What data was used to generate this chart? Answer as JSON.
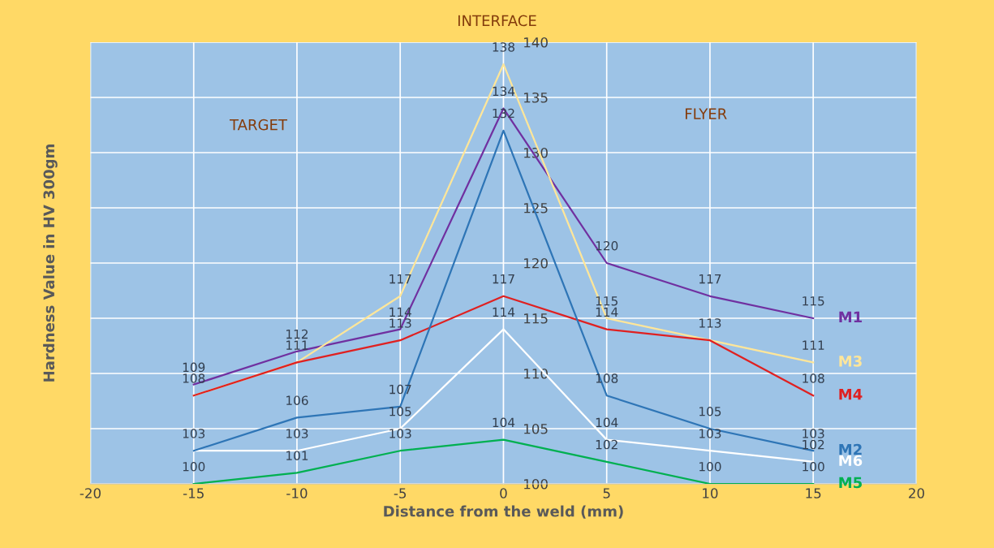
{
  "chart_data": {
    "type": "line",
    "xlabel": "Distance from the weld (mm)",
    "ylabel": "Hardness Value in HV 300gm",
    "x": [
      -15,
      -10,
      -5,
      0,
      5,
      10,
      15
    ],
    "series": [
      {
        "name": "M1",
        "color": "#7030a0",
        "values": [
          109,
          112,
          114,
          134,
          120,
          117,
          115
        ],
        "value_labels": [
          "109",
          "112",
          "114",
          "134",
          "120",
          "117",
          "115"
        ]
      },
      {
        "name": "M3",
        "color": "#ffe699",
        "values": [
          108,
          111,
          117,
          138,
          115,
          113,
          111
        ],
        "value_labels": [
          "108",
          "111",
          "117",
          "138",
          "115",
          "113",
          "111"
        ]
      },
      {
        "name": "M4",
        "color": "#e02020",
        "values": [
          108,
          111,
          113,
          117,
          114,
          113,
          108
        ],
        "value_labels": [
          null,
          null,
          "113",
          "117",
          "114",
          null,
          "108"
        ]
      },
      {
        "name": "M6",
        "color": "#ffffff",
        "values": [
          103,
          103,
          105,
          114,
          104,
          103,
          102
        ],
        "value_labels": [
          "103",
          "103",
          "105",
          "114",
          "104",
          "103",
          "102"
        ]
      },
      {
        "name": "M2",
        "color": "#2e75b6",
        "values": [
          103,
          106,
          107,
          132,
          108,
          105,
          103
        ],
        "value_labels": [
          null,
          "106",
          "107",
          "132",
          "108",
          "105",
          "103"
        ]
      },
      {
        "name": "M5",
        "color": "#00b050",
        "values": [
          100,
          101,
          103,
          104,
          102,
          100,
          100
        ],
        "value_labels": [
          "100",
          "101",
          "103",
          "104",
          "102",
          "100",
          "100"
        ]
      }
    ],
    "xlim": [
      -20,
      20
    ],
    "xticks": [
      -20,
      -15,
      -10,
      -5,
      0,
      5,
      10,
      15,
      20
    ],
    "ylim": [
      100,
      140
    ],
    "yticks": [
      100,
      105,
      110,
      115,
      120,
      125,
      130,
      135,
      140
    ],
    "grid": true,
    "legend": false,
    "marker": "none",
    "line_style": "solid",
    "annotations": [
      "INTERFACE",
      "TARGET",
      "FLYER"
    ]
  }
}
